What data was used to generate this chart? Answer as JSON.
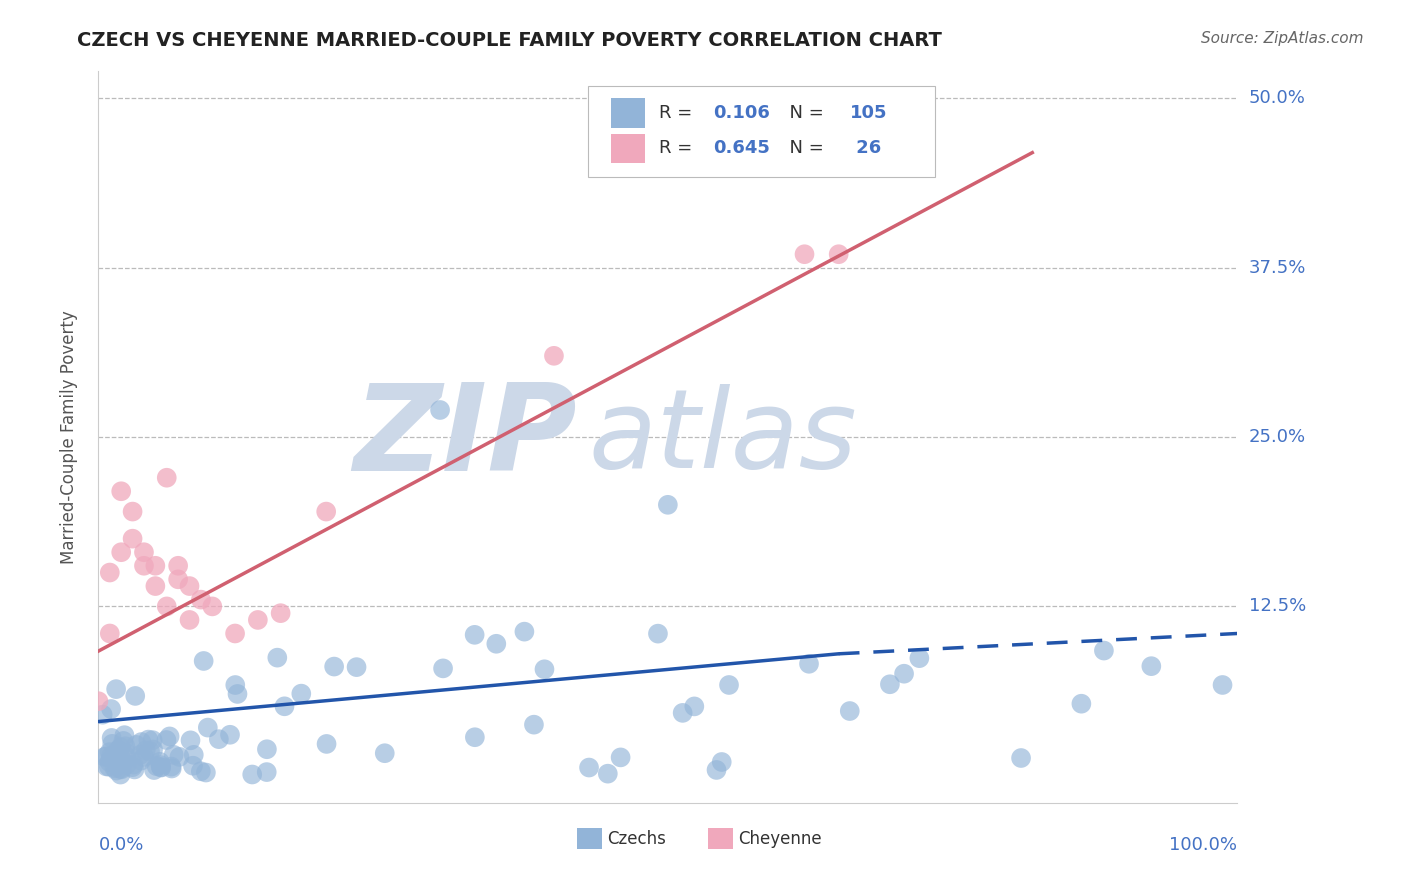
{
  "title": "CZECH VS CHEYENNE MARRIED-COUPLE FAMILY POVERTY CORRELATION CHART",
  "source": "Source: ZipAtlas.com",
  "ylabel": "Married-Couple Family Poverty",
  "yticks": [
    0.0,
    0.125,
    0.25,
    0.375,
    0.5
  ],
  "ytick_labels": [
    "",
    "12.5%",
    "25.0%",
    "37.5%",
    "50.0%"
  ],
  "xlim": [
    0.0,
    1.0
  ],
  "ylim": [
    -0.02,
    0.52
  ],
  "czechs_color": "#92b4d8",
  "cheyenne_color": "#f0a8bc",
  "czechs_line_color": "#2255aa",
  "cheyenne_line_color": "#d06070",
  "watermark_zip": "ZIP",
  "watermark_atlas": "atlas",
  "watermark_color": "#ccd8e8",
  "background_color": "#ffffff",
  "grid_color": "#bbbbbb",
  "legend_r1_val": "0.106",
  "legend_r2_val": "0.645",
  "legend_n1_val": "105",
  "legend_n2_val": " 26",
  "legend_text_color": "#333333",
  "legend_val_color": "#4472c4",
  "title_color": "#222222",
  "axis_label_color": "#4472c4",
  "ylabel_color": "#555555"
}
